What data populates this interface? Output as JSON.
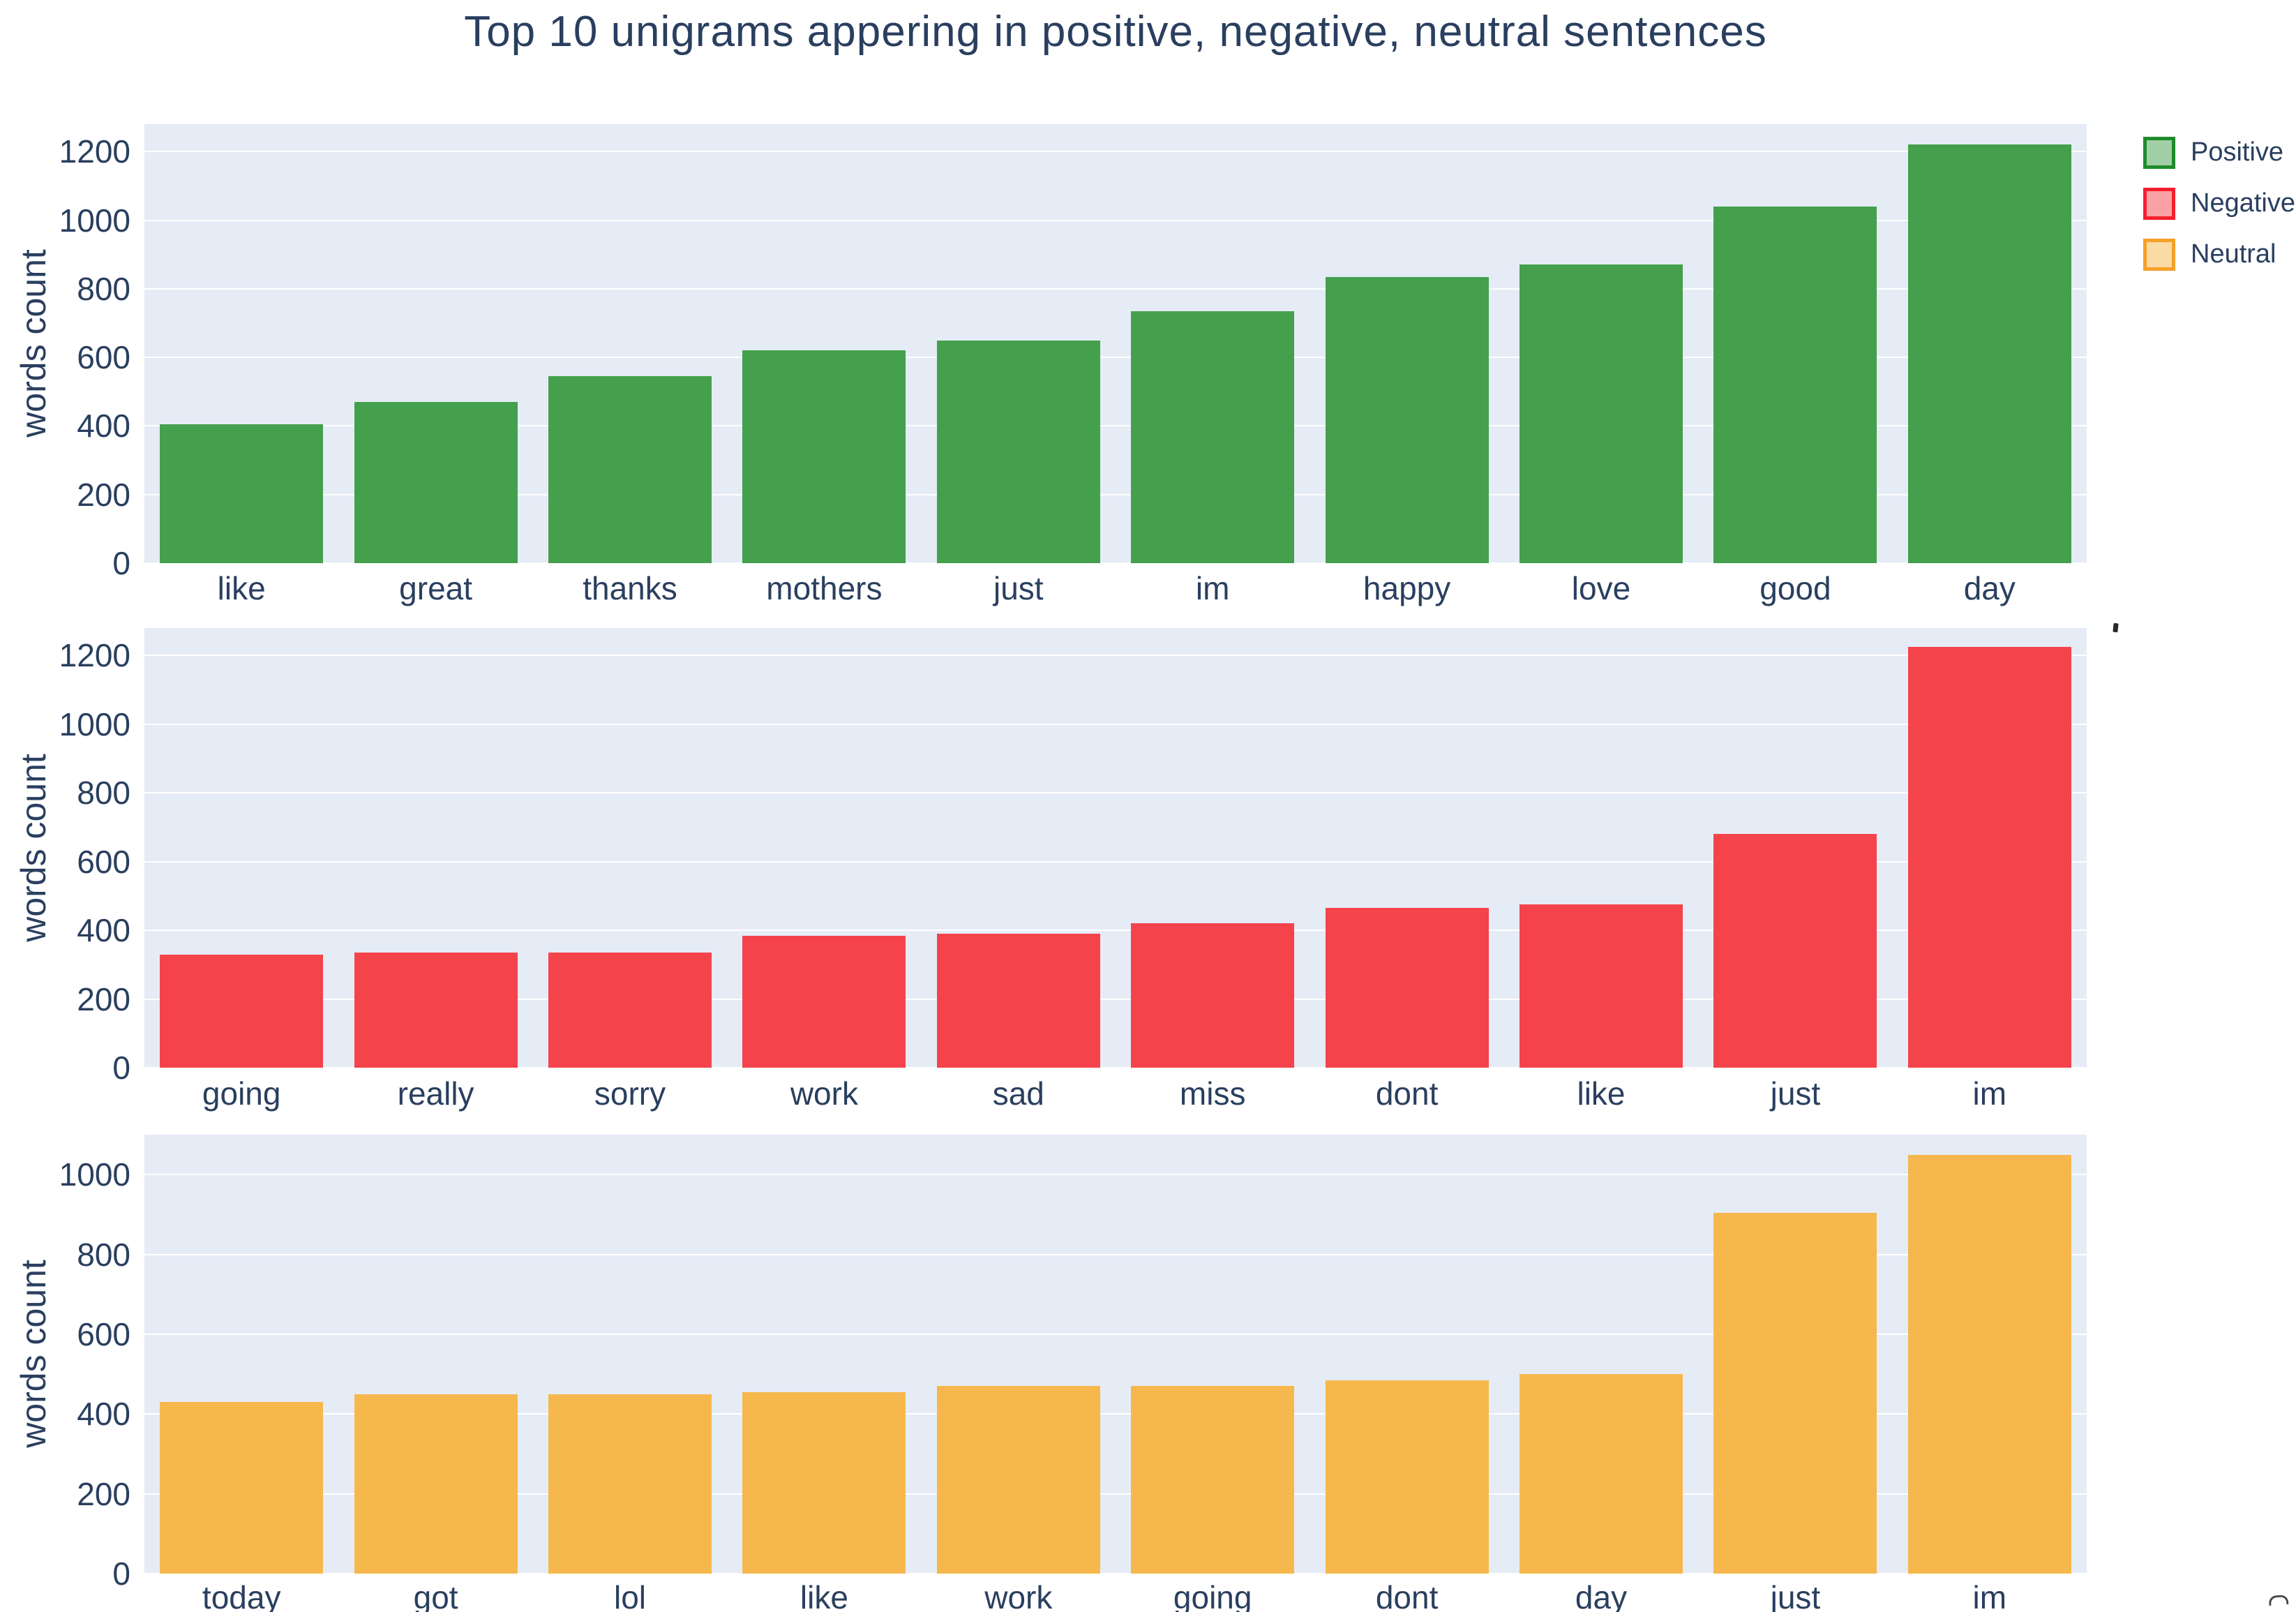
{
  "title": "Top 10 unigrams appering in positive, negative, neutral sentences",
  "colors": {
    "text": "#2a3f5f",
    "plot_bg": "#e5ecf6",
    "grid": "#ffffff",
    "paper": "#ffffff",
    "positive": "#44a04c",
    "negative": "#f4434b",
    "neutral": "#f6b84d"
  },
  "legend": {
    "items": [
      {
        "label": "Positive",
        "fill": "rgba(68,160,76,0.5)",
        "border": "#208b2c"
      },
      {
        "label": "Negative",
        "fill": "rgba(244,67,75,0.5)",
        "border": "#f61e2e"
      },
      {
        "label": "Neutral",
        "fill": "rgba(246,184,77,0.5)",
        "border": "#f5a028"
      }
    ]
  },
  "chart_data": [
    {
      "type": "bar",
      "name": "Positive",
      "color": "#44a04c",
      "ylabel": "words count",
      "categories": [
        "like",
        "great",
        "thanks",
        "mothers",
        "just",
        "im",
        "happy",
        "love",
        "good",
        "day"
      ],
      "values": [
        405,
        470,
        545,
        620,
        650,
        735,
        835,
        870,
        1040,
        1220
      ],
      "yticks": [
        0,
        200,
        400,
        600,
        800,
        1000,
        1200
      ],
      "ylim": [
        0,
        1280
      ],
      "grid": true,
      "legend_position": "top-right"
    },
    {
      "type": "bar",
      "name": "Negative",
      "color": "#f4434b",
      "ylabel": "words count",
      "categories": [
        "going",
        "really",
        "sorry",
        "work",
        "sad",
        "miss",
        "dont",
        "like",
        "just",
        "im"
      ],
      "values": [
        330,
        335,
        335,
        385,
        390,
        420,
        465,
        475,
        680,
        1225
      ],
      "yticks": [
        0,
        200,
        400,
        600,
        800,
        1000,
        1200
      ],
      "ylim": [
        0,
        1280
      ],
      "grid": true
    },
    {
      "type": "bar",
      "name": "Neutral",
      "color": "#f6b84d",
      "ylabel": "words count",
      "categories": [
        "today",
        "got",
        "lol",
        "like",
        "work",
        "going",
        "dont",
        "day",
        "just",
        "im"
      ],
      "values": [
        430,
        450,
        450,
        455,
        470,
        470,
        485,
        500,
        905,
        1050
      ],
      "yticks": [
        0,
        200,
        400,
        600,
        800,
        1000
      ],
      "ylim": [
        0,
        1100
      ],
      "grid": true
    }
  ]
}
